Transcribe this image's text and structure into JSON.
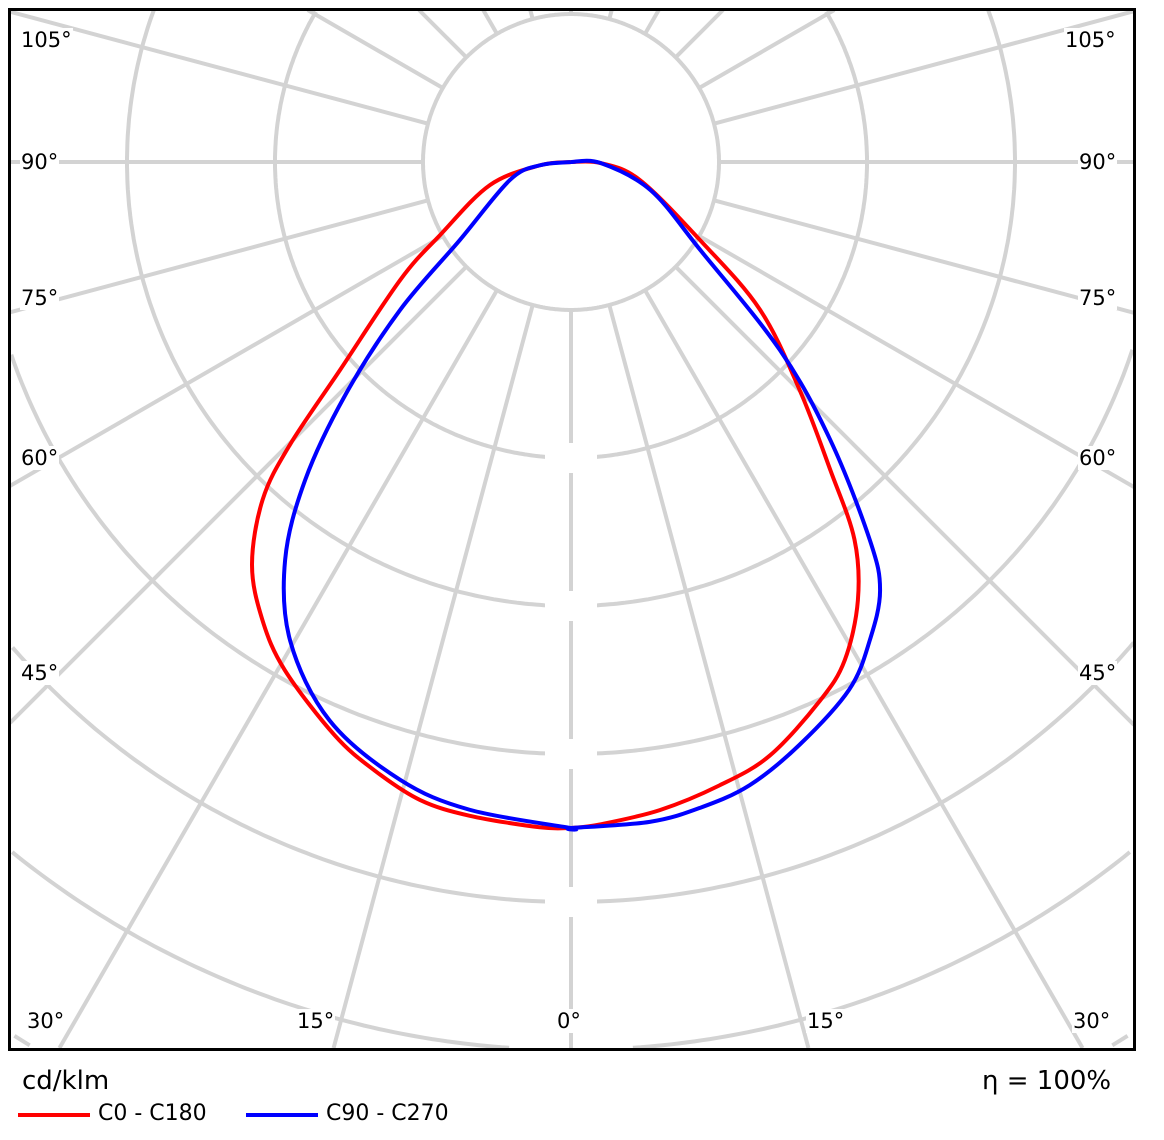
{
  "chart_data": {
    "type": "polar-line",
    "unit_label": "cd/klm",
    "efficiency_label": "η = 100%",
    "angle_ticks_side": [
      "105°",
      "90°",
      "75°",
      "60°",
      "45°",
      "30°"
    ],
    "angle_ticks_bottom": [
      "30°",
      "15°",
      "0°",
      "15°",
      "30°"
    ],
    "angle_grid_step_deg": 15,
    "radial_grid_rings": 8,
    "radial_tick_labels_visible": false,
    "grid": true,
    "legend_placement": "bottom-left",
    "series": [
      {
        "name": "C0 - C180",
        "color": "#ff0000",
        "left": [
          [
            0,
            4.5
          ],
          [
            2.7,
            4.5
          ],
          [
            8.8,
            4.47
          ],
          [
            13.3,
            4.43
          ],
          [
            17.9,
            4.32
          ],
          [
            22.4,
            4.19
          ],
          [
            29.4,
            3.94
          ],
          [
            34.0,
            3.73
          ],
          [
            38.4,
            3.47
          ],
          [
            42.4,
            3.09
          ],
          [
            44.8,
            2.7
          ],
          [
            48.0,
            2.1
          ],
          [
            55.4,
            1.4
          ],
          [
            60.9,
            1.01
          ],
          [
            74.1,
            0.57
          ],
          [
            84,
            0.21
          ],
          [
            90,
            0
          ]
        ],
        "right": [
          [
            0,
            4.5
          ],
          [
            2.5,
            4.48
          ],
          [
            7.8,
            4.42
          ],
          [
            13.4,
            4.33
          ],
          [
            18.5,
            4.23
          ],
          [
            24.8,
            4.01
          ],
          [
            28.8,
            3.84
          ],
          [
            33.2,
            3.54
          ],
          [
            36.9,
            3.19
          ],
          [
            40.1,
            2.72
          ],
          [
            45.1,
            2.18
          ],
          [
            52.0,
            1.62
          ],
          [
            58.8,
            1.02
          ],
          [
            75.4,
            0.48
          ],
          [
            88,
            0.2
          ],
          [
            90,
            0
          ]
        ]
      },
      {
        "name": "C90 - C270",
        "color": "#0000ff",
        "left": [
          [
            0,
            4.5
          ],
          [
            8.9,
            4.43
          ],
          [
            15.5,
            4.33
          ],
          [
            23.4,
            4.11
          ],
          [
            30.4,
            3.75
          ],
          [
            35.7,
            3.31
          ],
          [
            39.9,
            2.8
          ],
          [
            44.1,
            2.19
          ],
          [
            49.1,
            1.53
          ],
          [
            54.9,
            0.92
          ],
          [
            73.6,
            0.43
          ],
          [
            84,
            0.21
          ],
          [
            90,
            0
          ]
        ],
        "right": [
          [
            0,
            4.5
          ],
          [
            6.8,
            4.49
          ],
          [
            11.3,
            4.45
          ],
          [
            16.0,
            4.38
          ],
          [
            21.4,
            4.23
          ],
          [
            27.8,
            4.03
          ],
          [
            32.0,
            3.81
          ],
          [
            35.8,
            3.57
          ],
          [
            38.3,
            3.26
          ],
          [
            43.0,
            2.57
          ],
          [
            48.0,
            1.9
          ],
          [
            55.7,
            1.06
          ],
          [
            70.5,
            0.57
          ],
          [
            88,
            0.2
          ],
          [
            90,
            0
          ]
        ]
      }
    ]
  }
}
